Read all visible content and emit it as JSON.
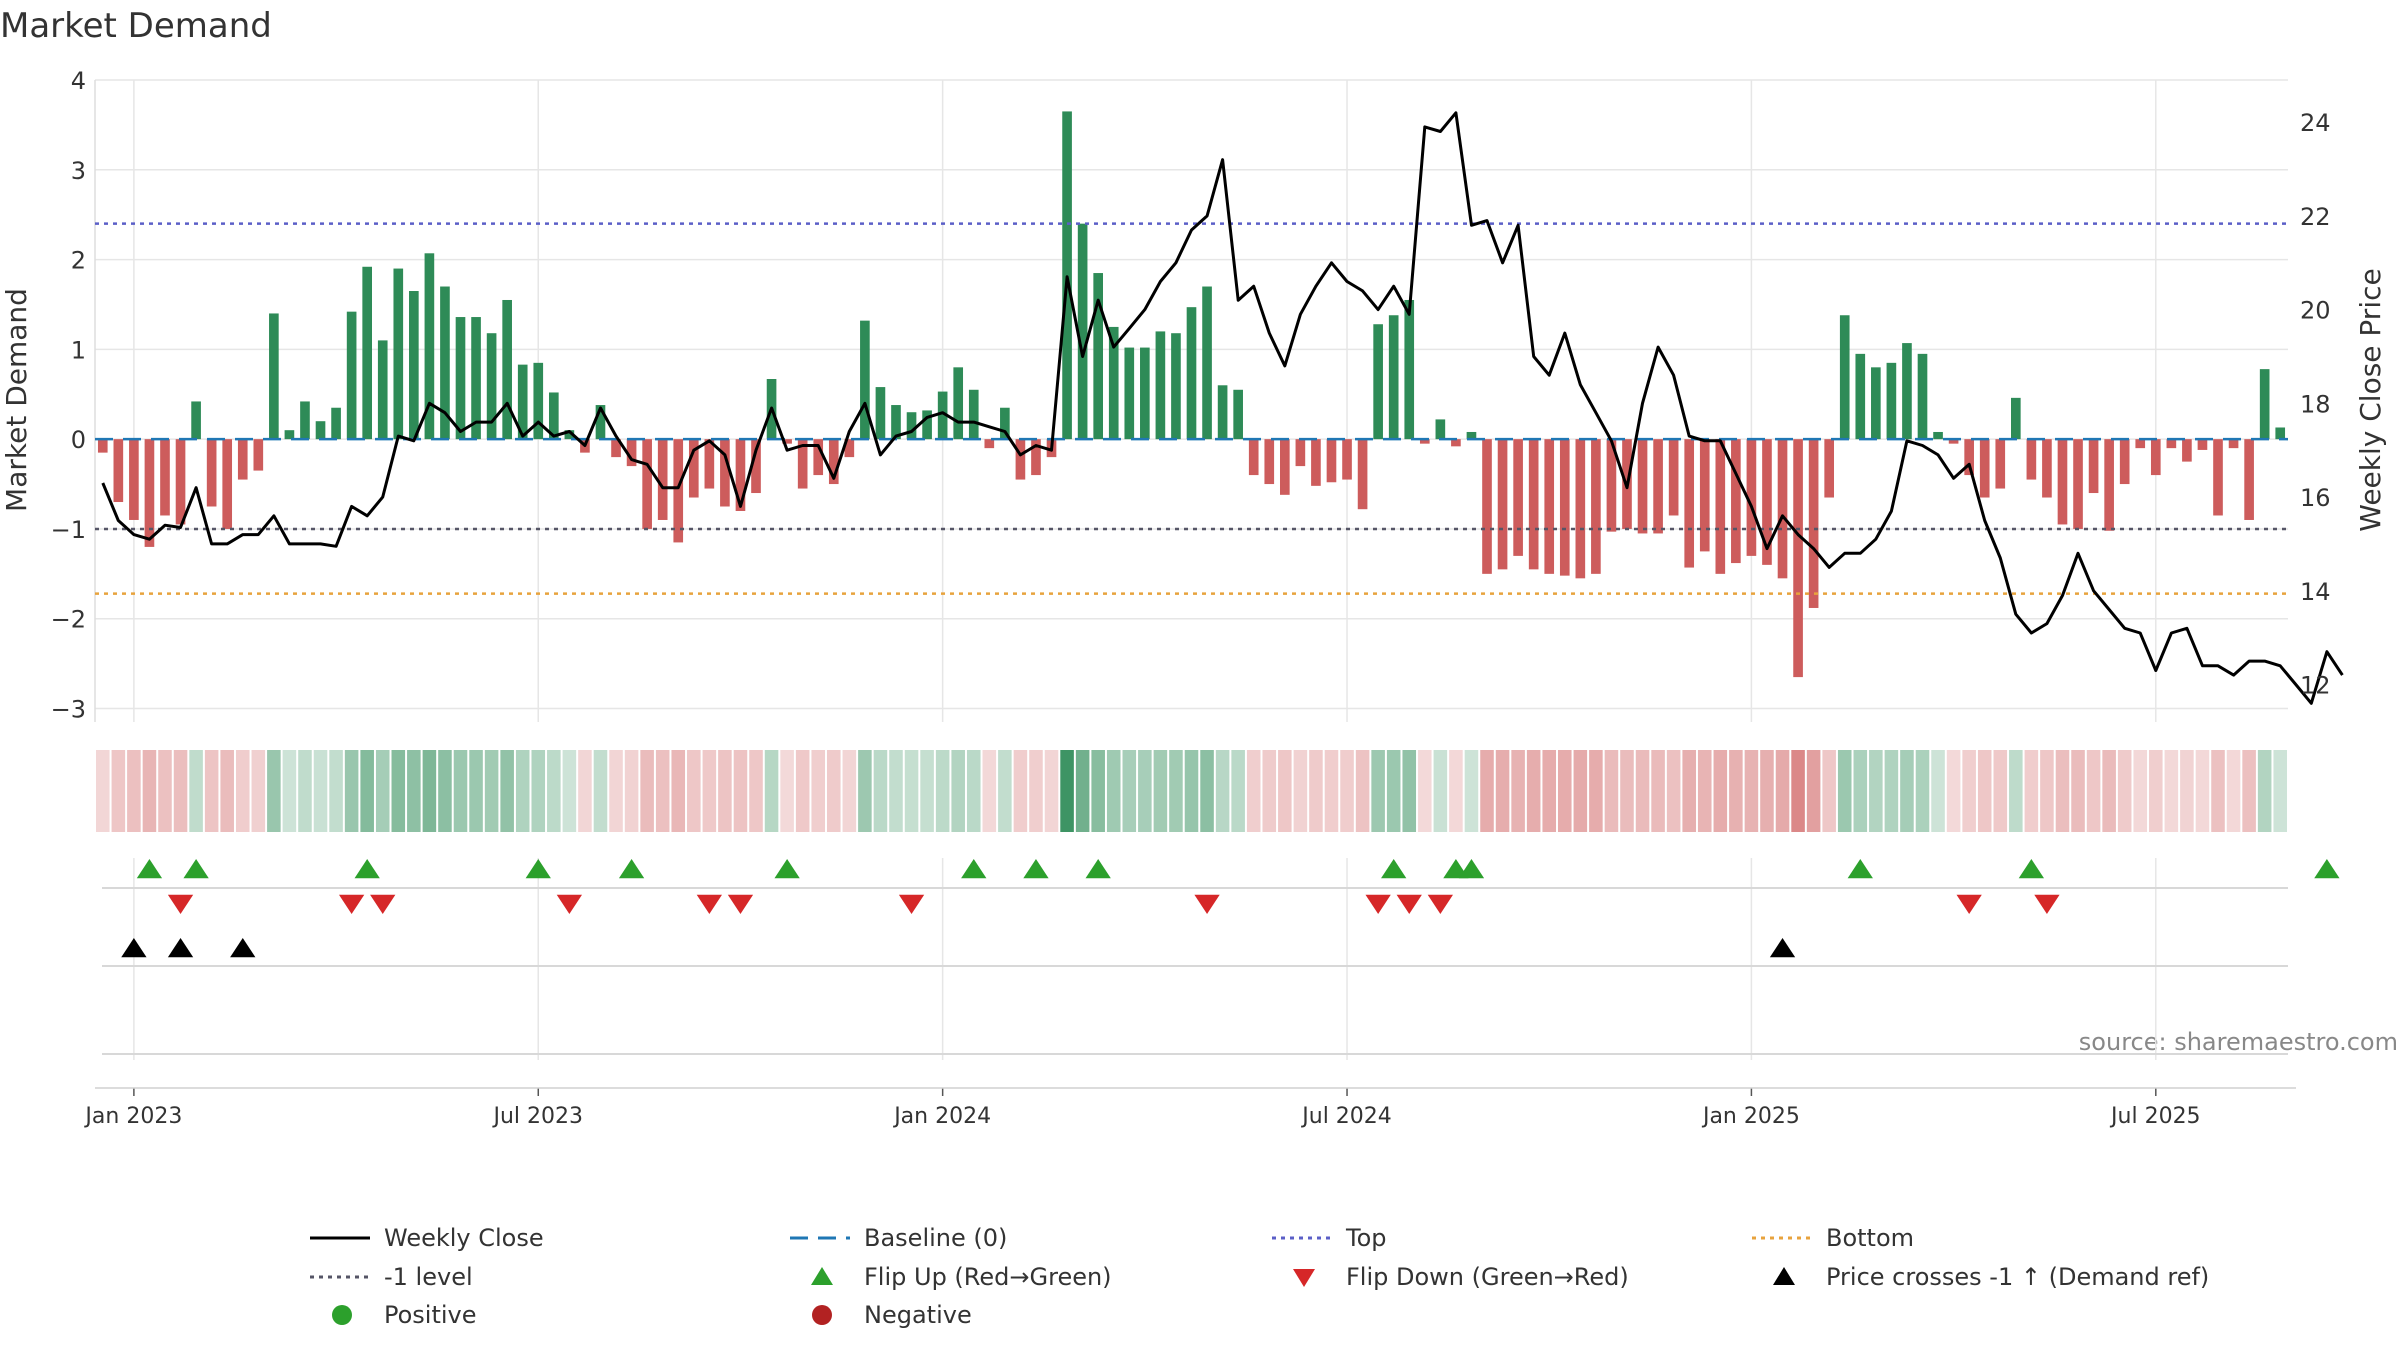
{
  "colors": {
    "positive": "#2e8b57",
    "negative": "#cd5c5c",
    "price_line": "#000000",
    "baseline": "#1f77b4",
    "top_level": "#5b5fc7",
    "minus1_level": "#555566",
    "bottom_level": "#e8a33d",
    "flip_up": "#2ca02c",
    "flip_down": "#d62728",
    "price_cross": "#000000",
    "grid": "#e6e6e6",
    "text": "#333333",
    "source": "#888888"
  },
  "chart_data": {
    "type": "bar",
    "title": "Market Demand",
    "ylabel": "Market Demand",
    "y2label": "Weekly Close Price",
    "source": "source: sharemaestro.com",
    "ylim": [
      -3.15,
      4.0
    ],
    "y2lim": [
      11.2,
      24.9
    ],
    "yticks": [
      {
        "v": 4,
        "label": "4"
      },
      {
        "v": 3,
        "label": "3"
      },
      {
        "v": 2,
        "label": "2"
      },
      {
        "v": 1,
        "label": "1"
      },
      {
        "v": 0,
        "label": "0"
      },
      {
        "v": -1,
        "label": "−1"
      },
      {
        "v": -2,
        "label": "−2"
      },
      {
        "v": -3,
        "label": "−3"
      }
    ],
    "y2ticks": [
      {
        "v": 24,
        "label": "24"
      },
      {
        "v": 22,
        "label": "22"
      },
      {
        "v": 20,
        "label": "20"
      },
      {
        "v": 18,
        "label": "18"
      },
      {
        "v": 16,
        "label": "16"
      },
      {
        "v": 14,
        "label": "14"
      },
      {
        "v": 12,
        "label": "12"
      }
    ],
    "xticks": [
      {
        "i": 2,
        "label": "Jan 2023"
      },
      {
        "i": 28,
        "label": "Jul 2023"
      },
      {
        "i": 54,
        "label": "Jan 2024"
      },
      {
        "i": 80,
        "label": "Jul 2024"
      },
      {
        "i": 106,
        "label": "Jan 2025"
      },
      {
        "i": 132,
        "label": "Jul 2025"
      }
    ],
    "levels": {
      "baseline": 0,
      "top": 2.4,
      "minus1": -1,
      "bottom": -1.72
    },
    "demand": [
      -0.15,
      -0.7,
      -0.9,
      -1.2,
      -0.85,
      -0.95,
      0.42,
      -0.75,
      -1.0,
      -0.45,
      -0.35,
      1.4,
      0.1,
      0.42,
      0.2,
      0.35,
      1.42,
      1.92,
      1.1,
      1.9,
      1.65,
      2.07,
      1.7,
      1.36,
      1.36,
      1.18,
      1.55,
      0.83,
      0.85,
      0.52,
      0.1,
      -0.15,
      0.38,
      -0.2,
      -0.3,
      -1.0,
      -0.9,
      -1.15,
      -0.65,
      -0.55,
      -0.75,
      -0.8,
      -0.6,
      0.67,
      -0.05,
      -0.55,
      -0.4,
      -0.5,
      -0.2,
      1.32,
      0.58,
      0.38,
      0.3,
      0.32,
      0.53,
      0.8,
      0.55,
      -0.1,
      0.35,
      -0.45,
      -0.4,
      -0.2,
      3.65,
      2.4,
      1.85,
      1.25,
      1.02,
      1.02,
      1.2,
      1.18,
      1.47,
      1.7,
      0.6,
      0.55,
      -0.4,
      -0.5,
      -0.62,
      -0.3,
      -0.52,
      -0.48,
      -0.45,
      -0.78,
      1.28,
      1.38,
      1.55,
      -0.05,
      0.22,
      -0.08,
      0.08,
      -1.5,
      -1.45,
      -1.3,
      -1.45,
      -1.5,
      -1.52,
      -1.55,
      -1.5,
      -1.03,
      -1.0,
      -1.05,
      -1.05,
      -0.85,
      -1.43,
      -1.25,
      -1.5,
      -1.38,
      -1.3,
      -1.4,
      -1.55,
      -2.65,
      -1.88,
      -0.65,
      1.38,
      0.95,
      0.8,
      0.85,
      1.07,
      0.95,
      0.08,
      -0.05,
      -0.4,
      -0.65,
      -0.55,
      0.46,
      -0.45,
      -0.65,
      -0.95,
      -1.0,
      -0.6,
      -1.02,
      -0.5,
      -0.1,
      -0.4,
      -0.1,
      -0.25,
      -0.12,
      -0.85,
      -0.1,
      -0.9,
      0.78,
      0.13
    ],
    "price": [
      16.3,
      15.5,
      15.2,
      15.1,
      15.4,
      15.35,
      16.2,
      15.0,
      15.0,
      15.2,
      15.2,
      15.6,
      15.0,
      15.0,
      15.0,
      14.95,
      15.8,
      15.6,
      16.0,
      17.3,
      17.2,
      18.0,
      17.8,
      17.4,
      17.6,
      17.6,
      18.0,
      17.3,
      17.6,
      17.3,
      17.4,
      17.1,
      17.9,
      17.3,
      16.8,
      16.7,
      16.2,
      16.2,
      17.0,
      17.2,
      16.9,
      15.8,
      17.0,
      17.9,
      17.0,
      17.1,
      17.1,
      16.4,
      17.4,
      18.0,
      16.9,
      17.3,
      17.4,
      17.7,
      17.8,
      17.6,
      17.6,
      17.5,
      17.4,
      16.9,
      17.1,
      17.0,
      20.7,
      19.0,
      20.2,
      19.2,
      19.6,
      20.0,
      20.6,
      21.0,
      21.7,
      22.0,
      23.2,
      20.2,
      20.5,
      19.5,
      18.8,
      19.9,
      20.5,
      21.0,
      20.6,
      20.4,
      20.0,
      20.5,
      19.9,
      23.9,
      23.8,
      24.2,
      21.8,
      21.9,
      21.0,
      21.8,
      19.0,
      18.6,
      19.5,
      18.4,
      17.8,
      17.2,
      16.2,
      18.0,
      19.2,
      18.6,
      17.3,
      17.2,
      17.2,
      16.5,
      15.8,
      14.9,
      15.6,
      15.2,
      14.9,
      14.5,
      14.8,
      14.8,
      15.1,
      15.7,
      17.2,
      17.1,
      16.9,
      16.4,
      16.7,
      15.5,
      14.7,
      13.5,
      13.1,
      13.3,
      13.9,
      14.8,
      14.0,
      13.6,
      13.2,
      13.1,
      12.3,
      13.1,
      13.2,
      12.4,
      12.4,
      12.2,
      12.5,
      12.5,
      12.4,
      12.0,
      11.6,
      12.7,
      12.2
    ],
    "flip_up": [
      3,
      6,
      17,
      28,
      34,
      44,
      56,
      60,
      64,
      83,
      87,
      88,
      113,
      124,
      143
    ],
    "flip_down": [
      5,
      16,
      18,
      30,
      39,
      41,
      52,
      71,
      82,
      84,
      86,
      120,
      125
    ],
    "price_cross": [
      2,
      5,
      9,
      108
    ],
    "legend": [
      {
        "label": "Weekly Close",
        "symbol": "solid-line",
        "color": "#000000"
      },
      {
        "label": "Baseline (0)",
        "symbol": "dashed-line",
        "color": "#1f77b4"
      },
      {
        "label": "Top",
        "symbol": "dotted-line",
        "color": "#5b5fc7"
      },
      {
        "label": "Bottom",
        "symbol": "dotted-line",
        "color": "#e8a33d"
      },
      {
        "label": "-1 level",
        "symbol": "dotted-line",
        "color": "#555566"
      },
      {
        "label": "Flip Up (Red→Green)",
        "symbol": "triangle-up",
        "color": "#2ca02c"
      },
      {
        "label": "Flip Down (Green→Red)",
        "symbol": "triangle-down",
        "color": "#d62728"
      },
      {
        "label": "Price crosses -1 ↑ (Demand ref)",
        "symbol": "triangle-up",
        "color": "#000000"
      },
      {
        "label": "Positive",
        "symbol": "circle",
        "color": "#2ca02c"
      },
      {
        "label": "Negative",
        "symbol": "circle",
        "color": "#b22222"
      }
    ]
  }
}
